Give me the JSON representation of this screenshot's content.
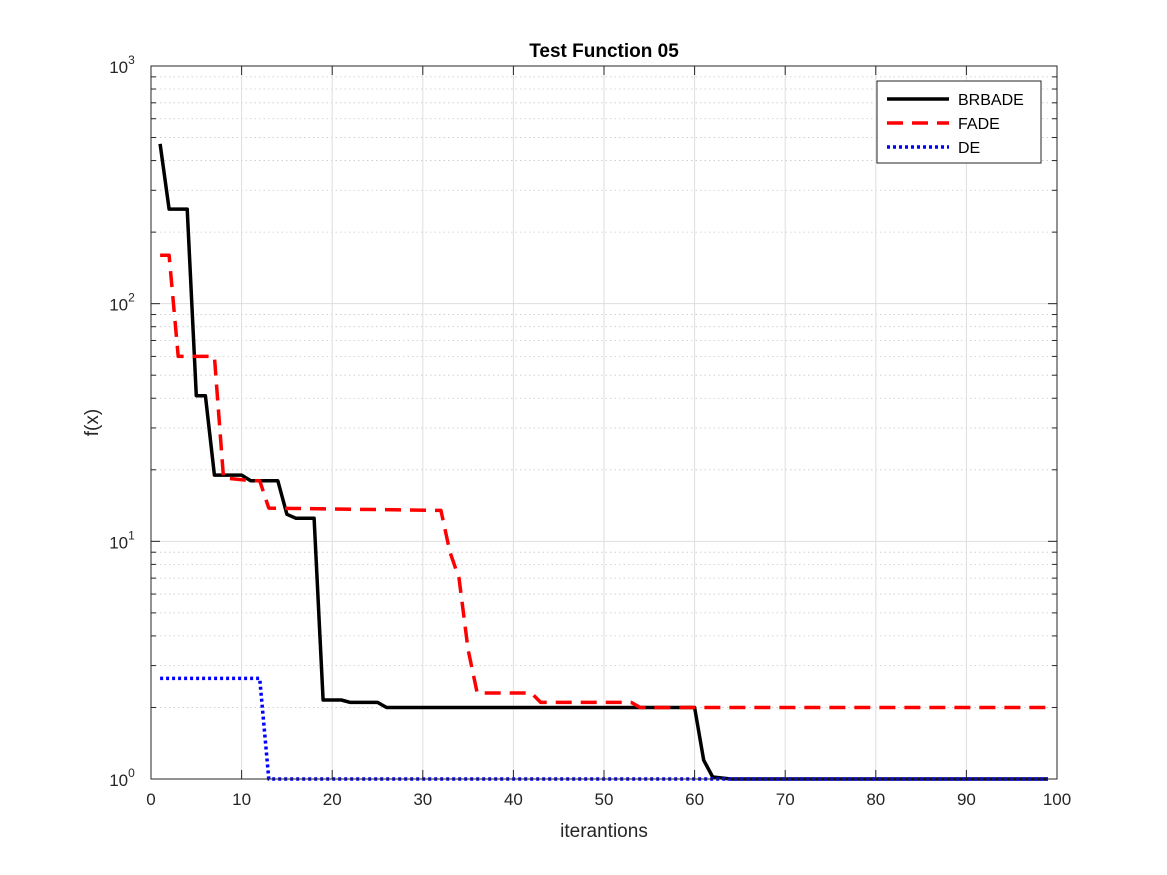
{
  "chart_data": {
    "type": "line",
    "title": "Test Function 05",
    "xlabel": "iterantions",
    "ylabel": "f(x)",
    "xlim": [
      0,
      100
    ],
    "ylim": [
      1,
      1000
    ],
    "yscale": "log",
    "grid": true,
    "legend_position": "top-right",
    "x_ticks": [
      0,
      10,
      20,
      30,
      40,
      50,
      60,
      70,
      80,
      90,
      100
    ],
    "x_tick_labels": [
      "0",
      "10",
      "20",
      "30",
      "40",
      "50",
      "60",
      "70",
      "80",
      "90",
      "100"
    ],
    "y_ticks": [
      1,
      10,
      100,
      1000
    ],
    "y_tick_labels": [
      {
        "base": "10",
        "exp": "0"
      },
      {
        "base": "10",
        "exp": "1"
      },
      {
        "base": "10",
        "exp": "2"
      },
      {
        "base": "10",
        "exp": "3"
      }
    ],
    "series": [
      {
        "name": "BRBADE",
        "color": "#000000",
        "style": "solid",
        "points": [
          [
            1,
            470
          ],
          [
            2,
            250
          ],
          [
            4,
            250
          ],
          [
            5,
            41
          ],
          [
            6,
            41
          ],
          [
            7,
            19
          ],
          [
            10,
            19
          ],
          [
            11,
            18
          ],
          [
            14,
            18
          ],
          [
            15,
            13
          ],
          [
            16,
            12.5
          ],
          [
            18,
            12.5
          ],
          [
            19,
            2.15
          ],
          [
            21,
            2.15
          ],
          [
            22,
            2.1
          ],
          [
            25,
            2.1
          ],
          [
            26,
            2
          ],
          [
            60,
            2
          ],
          [
            61,
            1.2
          ],
          [
            62,
            1.02
          ],
          [
            63,
            1.01
          ],
          [
            64,
            1
          ],
          [
            99,
            1
          ]
        ]
      },
      {
        "name": "FADE",
        "color": "#ff0000",
        "style": "dashed",
        "points": [
          [
            1,
            160
          ],
          [
            2,
            160
          ],
          [
            3,
            60
          ],
          [
            7,
            60
          ],
          [
            8,
            18.5
          ],
          [
            11,
            18
          ],
          [
            12,
            18
          ],
          [
            13,
            13.8
          ],
          [
            32,
            13.5
          ],
          [
            33,
            9
          ],
          [
            34,
            7
          ],
          [
            35,
            3.5
          ],
          [
            36,
            2.3
          ],
          [
            42,
            2.3
          ],
          [
            43,
            2.1
          ],
          [
            53,
            2.1
          ],
          [
            54,
            2
          ],
          [
            99,
            2
          ]
        ]
      },
      {
        "name": "DE",
        "color": "#0000ff",
        "style": "dotted",
        "points": [
          [
            1,
            2.65
          ],
          [
            12,
            2.65
          ],
          [
            13,
            1
          ],
          [
            99,
            1
          ]
        ]
      }
    ]
  }
}
